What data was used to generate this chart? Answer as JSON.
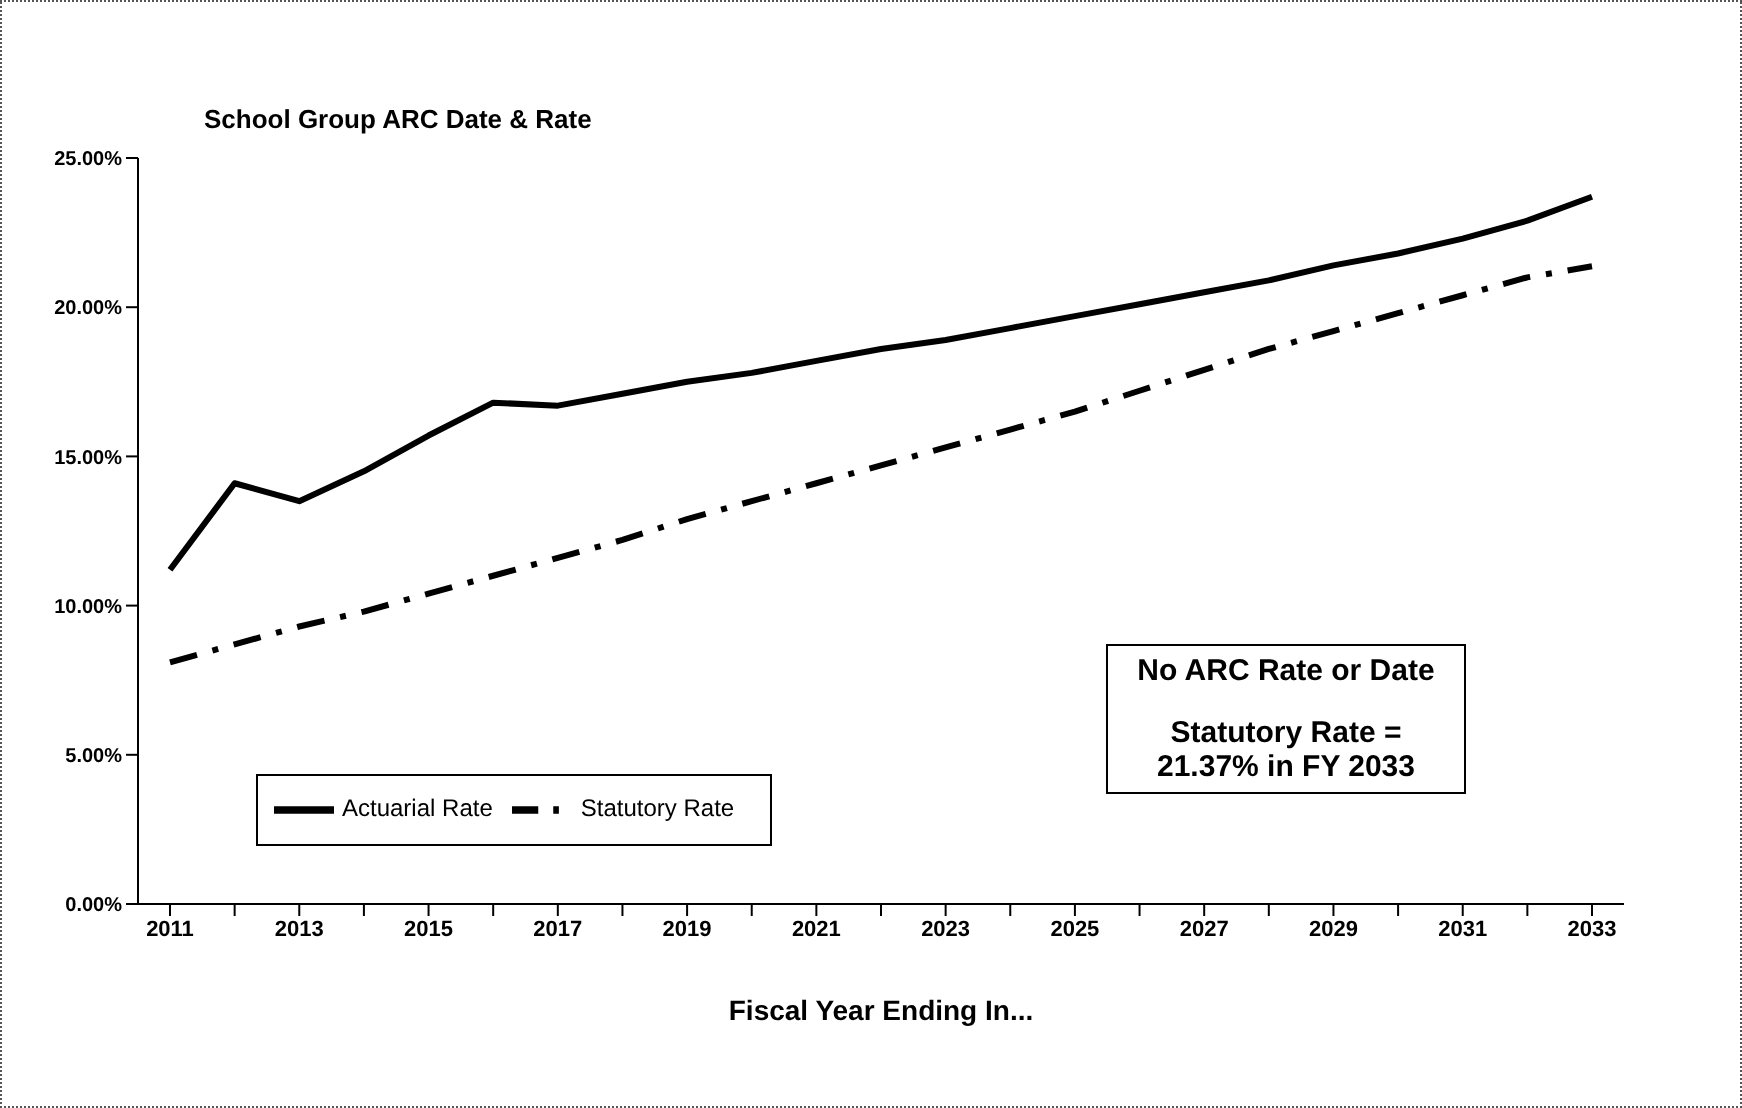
{
  "chart_data": {
    "type": "line",
    "title": "School Group ARC Date & Rate",
    "xlabel": "Fiscal Year Ending In...",
    "categories": [
      "2011",
      null,
      "2013",
      null,
      "2015",
      null,
      "2017",
      null,
      "2019",
      null,
      "2021",
      null,
      "2023",
      null,
      "2025",
      null,
      "2027",
      null,
      "2029",
      null,
      "2031",
      null,
      "2033"
    ],
    "series": [
      {
        "name": "Statutory Rate",
        "color": "#000000",
        "line_style": "dashed",
        "values": [
          8.1,
          8.7,
          9.3,
          9.8,
          10.4,
          11.0,
          11.6,
          12.2,
          12.9,
          13.5,
          14.1,
          14.7,
          15.3,
          15.9,
          16.5,
          17.2,
          17.9,
          18.6,
          19.2,
          19.8,
          20.4,
          21.0,
          21.37
        ]
      },
      {
        "name": "Actuarial Rate",
        "color": "#000000",
        "line_style": "solid",
        "values": [
          11.2,
          14.1,
          13.5,
          14.5,
          15.7,
          16.8,
          16.7,
          17.1,
          17.5,
          17.8,
          18.2,
          18.6,
          18.9,
          19.3,
          19.7,
          20.1,
          20.5,
          20.9,
          21.4,
          21.8,
          22.3,
          22.9,
          23.7
        ]
      }
    ],
    "ylim": [
      0,
      25
    ],
    "yticks": [
      {
        "value": 0,
        "label": "0.00%"
      },
      {
        "value": 5,
        "label": "5.00%"
      },
      {
        "value": 10,
        "label": "10.00%"
      },
      {
        "value": 15,
        "label": "15.00%"
      },
      {
        "value": 20,
        "label": "20.00%"
      },
      {
        "value": 25,
        "label": "25.00%"
      }
    ],
    "legend": "bottom left",
    "marker": "none",
    "grid": false,
    "annotations": [
      "No ARC Rate or Date",
      "Statutory Rate = 21.37% in FY 2033"
    ]
  }
}
